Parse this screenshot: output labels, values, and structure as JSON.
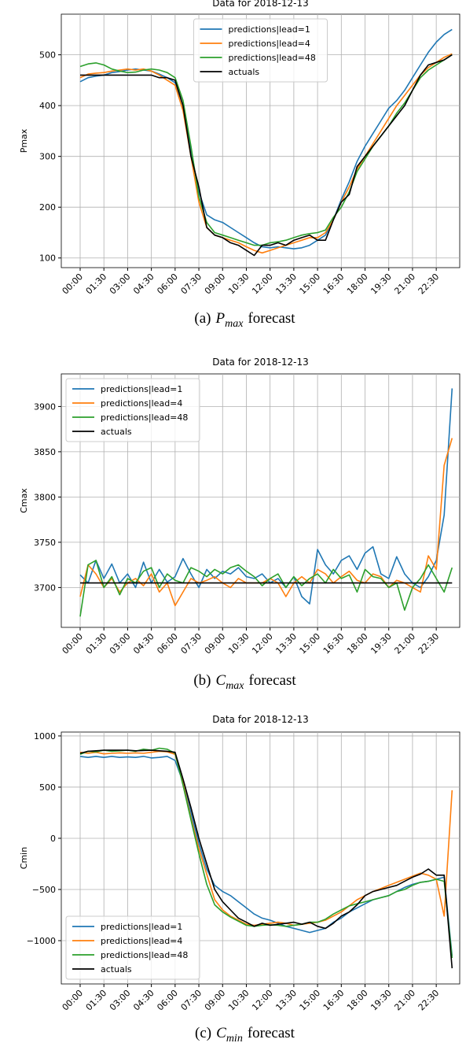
{
  "chart_data": [
    {
      "type": "line",
      "title": "Data for 2018-12-13",
      "ylabel": "Pmax",
      "caption": {
        "tag": "(a)",
        "symbol": "P",
        "subscript": "max",
        "text": "forecast"
      },
      "legend": "upper center",
      "grid": true,
      "categories": [
        "00:00",
        null,
        null,
        "01:30",
        null,
        null,
        "03:00",
        null,
        null,
        "04:30",
        null,
        null,
        "06:00",
        null,
        null,
        "07:30",
        null,
        null,
        "09:00",
        null,
        null,
        "10:30",
        null,
        null,
        "12:00",
        null,
        null,
        "13:30",
        null,
        null,
        "15:00",
        null,
        null,
        "16:30",
        null,
        null,
        "18:00",
        null,
        null,
        "19:30",
        null,
        null,
        "21:00",
        null,
        null,
        "22:30",
        null,
        null
      ],
      "ylim": [
        81,
        580
      ],
      "yticks": [
        100,
        200,
        300,
        400,
        500
      ],
      "series": [
        {
          "name": "predictions|lead=1",
          "color": "#1f77b4",
          "values": [
            447,
            455,
            458,
            460,
            465,
            467,
            470,
            472,
            470,
            468,
            462,
            455,
            445,
            400,
            310,
            230,
            185,
            175,
            170,
            160,
            150,
            140,
            130,
            122,
            120,
            122,
            120,
            118,
            120,
            125,
            135,
            145,
            175,
            215,
            250,
            290,
            320,
            345,
            370,
            395,
            410,
            430,
            455,
            480,
            505,
            525,
            540,
            550
          ]
        },
        {
          "name": "predictions|lead=4",
          "color": "#ff7f0e",
          "values": [
            455,
            462,
            464,
            465,
            468,
            470,
            472,
            470,
            472,
            468,
            460,
            450,
            440,
            390,
            300,
            210,
            160,
            145,
            140,
            135,
            130,
            122,
            115,
            110,
            115,
            120,
            125,
            130,
            135,
            140,
            140,
            150,
            175,
            210,
            240,
            275,
            300,
            325,
            350,
            375,
            400,
            420,
            440,
            460,
            475,
            485,
            495,
            502
          ]
        },
        {
          "name": "predictions|lead=48",
          "color": "#2ca02c",
          "values": [
            477,
            482,
            484,
            480,
            472,
            468,
            465,
            466,
            470,
            472,
            470,
            465,
            455,
            410,
            320,
            220,
            170,
            150,
            145,
            140,
            135,
            130,
            125,
            125,
            130,
            132,
            135,
            140,
            145,
            148,
            150,
            155,
            180,
            200,
            230,
            270,
            295,
            320,
            340,
            360,
            385,
            405,
            430,
            455,
            470,
            480,
            490,
            500
          ]
        },
        {
          "name": "actuals",
          "color": "#000000",
          "values": [
            460,
            460,
            460,
            460,
            460,
            460,
            460,
            460,
            460,
            460,
            455,
            455,
            450,
            400,
            300,
            240,
            160,
            145,
            140,
            130,
            125,
            115,
            105,
            125,
            125,
            130,
            125,
            135,
            140,
            145,
            135,
            135,
            175,
            210,
            225,
            280,
            300,
            320,
            340,
            360,
            380,
            400,
            430,
            460,
            480,
            485,
            490,
            500
          ]
        }
      ]
    },
    {
      "type": "line",
      "title": "Data for 2018-12-13",
      "ylabel": "Cmax",
      "caption": {
        "tag": "(b)",
        "symbol": "C",
        "subscript": "max",
        "text": "forecast"
      },
      "legend": "upper left",
      "grid": true,
      "categories": [
        "00:00",
        null,
        null,
        "01:30",
        null,
        null,
        "03:00",
        null,
        null,
        "04:30",
        null,
        null,
        "06:00",
        null,
        null,
        "07:30",
        null,
        null,
        "09:00",
        null,
        null,
        "10:30",
        null,
        null,
        "12:00",
        null,
        null,
        "13:30",
        null,
        null,
        "15:00",
        null,
        null,
        "16:30",
        null,
        null,
        "18:00",
        null,
        null,
        "19:30",
        null,
        null,
        "21:00",
        null,
        null,
        "22:30",
        null,
        null
      ],
      "ylim": [
        3656,
        3936
      ],
      "yticks": [
        3700,
        3750,
        3800,
        3850,
        3900
      ],
      "series": [
        {
          "name": "predictions|lead=1",
          "color": "#1f77b4",
          "values": [
            3714,
            3705,
            3730,
            3710,
            3726,
            3705,
            3715,
            3700,
            3728,
            3705,
            3720,
            3706,
            3712,
            3732,
            3715,
            3700,
            3720,
            3710,
            3718,
            3715,
            3722,
            3712,
            3710,
            3715,
            3705,
            3710,
            3700,
            3712,
            3690,
            3682,
            3742,
            3725,
            3715,
            3730,
            3735,
            3720,
            3738,
            3745,
            3715,
            3710,
            3734,
            3715,
            3705,
            3700,
            3712,
            3730,
            3780,
            3920
          ]
        },
        {
          "name": "predictions|lead=4",
          "color": "#ff7f0e",
          "values": [
            3690,
            3725,
            3715,
            3700,
            3710,
            3695,
            3705,
            3710,
            3702,
            3715,
            3695,
            3705,
            3680,
            3695,
            3710,
            3705,
            3708,
            3712,
            3705,
            3700,
            3710,
            3705,
            3705,
            3705,
            3710,
            3705,
            3690,
            3705,
            3712,
            3705,
            3720,
            3715,
            3705,
            3712,
            3718,
            3708,
            3705,
            3715,
            3712,
            3700,
            3708,
            3705,
            3700,
            3695,
            3735,
            3720,
            3835,
            3865
          ]
        },
        {
          "name": "predictions|lead=48",
          "color": "#2ca02c",
          "values": [
            3668,
            3725,
            3730,
            3700,
            3712,
            3692,
            3710,
            3705,
            3718,
            3722,
            3700,
            3715,
            3708,
            3705,
            3722,
            3718,
            3712,
            3720,
            3715,
            3722,
            3725,
            3718,
            3712,
            3702,
            3710,
            3715,
            3700,
            3712,
            3702,
            3710,
            3715,
            3705,
            3720,
            3710,
            3714,
            3695,
            3720,
            3712,
            3710,
            3700,
            3705,
            3675,
            3700,
            3710,
            3725,
            3710,
            3695,
            3722
          ]
        },
        {
          "name": "actuals",
          "color": "#000000",
          "values": [
            3705,
            3705,
            3705,
            3705,
            3705,
            3705,
            3705,
            3705,
            3705,
            3705,
            3705,
            3705,
            3705,
            3705,
            3705,
            3705,
            3705,
            3705,
            3705,
            3705,
            3705,
            3705,
            3705,
            3705,
            3705,
            3705,
            3705,
            3705,
            3705,
            3705,
            3705,
            3705,
            3705,
            3705,
            3705,
            3705,
            3705,
            3705,
            3705,
            3705,
            3705,
            3705,
            3705,
            3705,
            3705,
            3705,
            3705,
            3705
          ]
        }
      ]
    },
    {
      "type": "line",
      "title": "Data for 2018-12-13",
      "ylabel": "Cmin",
      "caption": {
        "tag": "(c)",
        "symbol": "C",
        "subscript": "min",
        "text": "forecast"
      },
      "legend": "lower left",
      "grid": true,
      "categories": [
        "00:00",
        null,
        null,
        "01:30",
        null,
        null,
        "03:00",
        null,
        null,
        "04:30",
        null,
        null,
        "06:00",
        null,
        null,
        "07:30",
        null,
        null,
        "09:00",
        null,
        null,
        "10:30",
        null,
        null,
        "12:00",
        null,
        null,
        "13:30",
        null,
        null,
        "15:00",
        null,
        null,
        "16:30",
        null,
        null,
        "18:00",
        null,
        null,
        "19:30",
        null,
        null,
        "21:00",
        null,
        null,
        "22:30",
        null,
        null
      ],
      "ylim": [
        -1423,
        1038
      ],
      "yticks": [
        {
          "value": -1000,
          "label": "−1000"
        },
        {
          "value": -500,
          "label": "−500"
        },
        0,
        500,
        1000
      ],
      "series": [
        {
          "name": "predictions|lead=1",
          "color": "#1f77b4",
          "values": [
            800,
            790,
            800,
            790,
            800,
            790,
            795,
            790,
            800,
            785,
            790,
            800,
            760,
            550,
            250,
            -50,
            -300,
            -460,
            -520,
            -560,
            -620,
            -680,
            -740,
            -780,
            -800,
            -830,
            -860,
            -880,
            -900,
            -920,
            -900,
            -880,
            -820,
            -780,
            -720,
            -680,
            -640,
            -600,
            -580,
            -560,
            -520,
            -480,
            -450,
            -430,
            -420,
            -400,
            -380,
            -1150
          ]
        },
        {
          "name": "predictions|lead=4",
          "color": "#ff7f0e",
          "values": [
            840,
            830,
            840,
            825,
            830,
            835,
            830,
            835,
            830,
            840,
            850,
            845,
            820,
            540,
            200,
            -100,
            -350,
            -600,
            -700,
            -760,
            -800,
            -840,
            -850,
            -840,
            -830,
            -820,
            -830,
            -850,
            -840,
            -830,
            -820,
            -800,
            -760,
            -720,
            -660,
            -600,
            -560,
            -520,
            -490,
            -460,
            -430,
            -400,
            -370,
            -340,
            -360,
            -400,
            -760,
            470
          ]
        },
        {
          "name": "predictions|lead=48",
          "color": "#2ca02c",
          "values": [
            820,
            850,
            845,
            860,
            850,
            855,
            860,
            850,
            870,
            860,
            880,
            870,
            830,
            520,
            180,
            -150,
            -450,
            -650,
            -720,
            -770,
            -810,
            -850,
            -860,
            -850,
            -845,
            -850,
            -860,
            -850,
            -840,
            -820,
            -820,
            -790,
            -740,
            -700,
            -660,
            -640,
            -620,
            -600,
            -580,
            -560,
            -520,
            -500,
            -460,
            -430,
            -420,
            -400,
            -420,
            -1170
          ]
        },
        {
          "name": "actuals",
          "color": "#000000",
          "values": [
            830,
            850,
            855,
            860,
            860,
            860,
            860,
            855,
            858,
            860,
            855,
            850,
            840,
            580,
            300,
            0,
            -250,
            -500,
            -620,
            -700,
            -780,
            -820,
            -860,
            -830,
            -850,
            -840,
            -830,
            -820,
            -840,
            -820,
            -860,
            -880,
            -830,
            -760,
            -720,
            -650,
            -560,
            -520,
            -500,
            -480,
            -460,
            -420,
            -380,
            -350,
            -300,
            -360,
            -360,
            -1270
          ]
        }
      ]
    }
  ]
}
